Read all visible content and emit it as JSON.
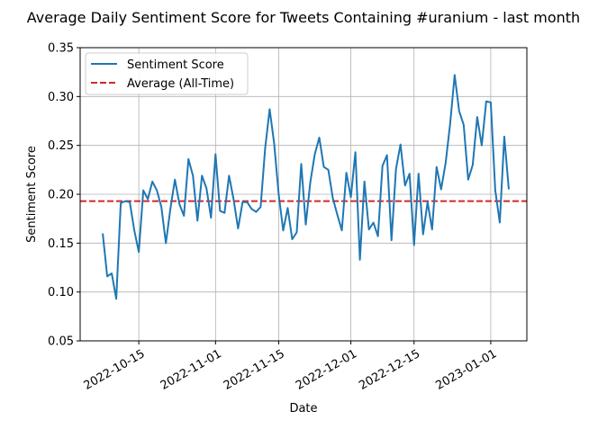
{
  "chart_data": {
    "type": "line",
    "title": "Average Daily Sentiment Score for Tweets Containing #uranium - last month",
    "xlabel": "Date",
    "ylabel": "Sentiment Score",
    "x_start": "2022-10-07",
    "x_end": "2023-01-04",
    "xlim": [
      "2022-10-02",
      "2023-01-09"
    ],
    "ylim": [
      0.05,
      0.35
    ],
    "yticks": [
      0.05,
      0.1,
      0.15,
      0.2,
      0.25,
      0.3,
      0.35
    ],
    "ytick_labels": [
      "0.05",
      "0.10",
      "0.15",
      "0.20",
      "0.25",
      "0.30",
      "0.35"
    ],
    "xticks": [
      "2022-10-15",
      "2022-11-01",
      "2022-11-15",
      "2022-12-01",
      "2022-12-15",
      "2023-01-01"
    ],
    "xtick_labels": [
      "2022-10-15",
      "2022-11-01",
      "2022-11-15",
      "2022-12-01",
      "2022-12-15",
      "2023-01-01"
    ],
    "grid": true,
    "legend_position": "upper-left",
    "series": [
      {
        "name": "Sentiment Score",
        "color": "#1f77b4",
        "style": "solid",
        "values": [
          0.16,
          0.116,
          0.119,
          0.093,
          0.191,
          0.193,
          0.192,
          0.163,
          0.141,
          0.204,
          0.195,
          0.213,
          0.204,
          0.187,
          0.15,
          0.185,
          0.215,
          0.19,
          0.178,
          0.236,
          0.219,
          0.173,
          0.219,
          0.206,
          0.176,
          0.241,
          0.183,
          0.181,
          0.219,
          0.195,
          0.165,
          0.192,
          0.192,
          0.185,
          0.182,
          0.187,
          0.247,
          0.287,
          0.252,
          0.2,
          0.163,
          0.186,
          0.154,
          0.161,
          0.231,
          0.169,
          0.212,
          0.241,
          0.258,
          0.228,
          0.225,
          0.196,
          0.179,
          0.163,
          0.222,
          0.197,
          0.243,
          0.133,
          0.213,
          0.164,
          0.171,
          0.157,
          0.229,
          0.24,
          0.153,
          0.226,
          0.251,
          0.209,
          0.221,
          0.148,
          0.221,
          0.159,
          0.192,
          0.164,
          0.228,
          0.205,
          0.232,
          0.272,
          0.322,
          0.285,
          0.271,
          0.215,
          0.23,
          0.279,
          0.25,
          0.295,
          0.294,
          0.204,
          0.171,
          0.259,
          0.205
        ]
      },
      {
        "name": "Average (All-Time)",
        "color": "#d62728",
        "style": "dashed",
        "value": 0.193
      }
    ]
  }
}
